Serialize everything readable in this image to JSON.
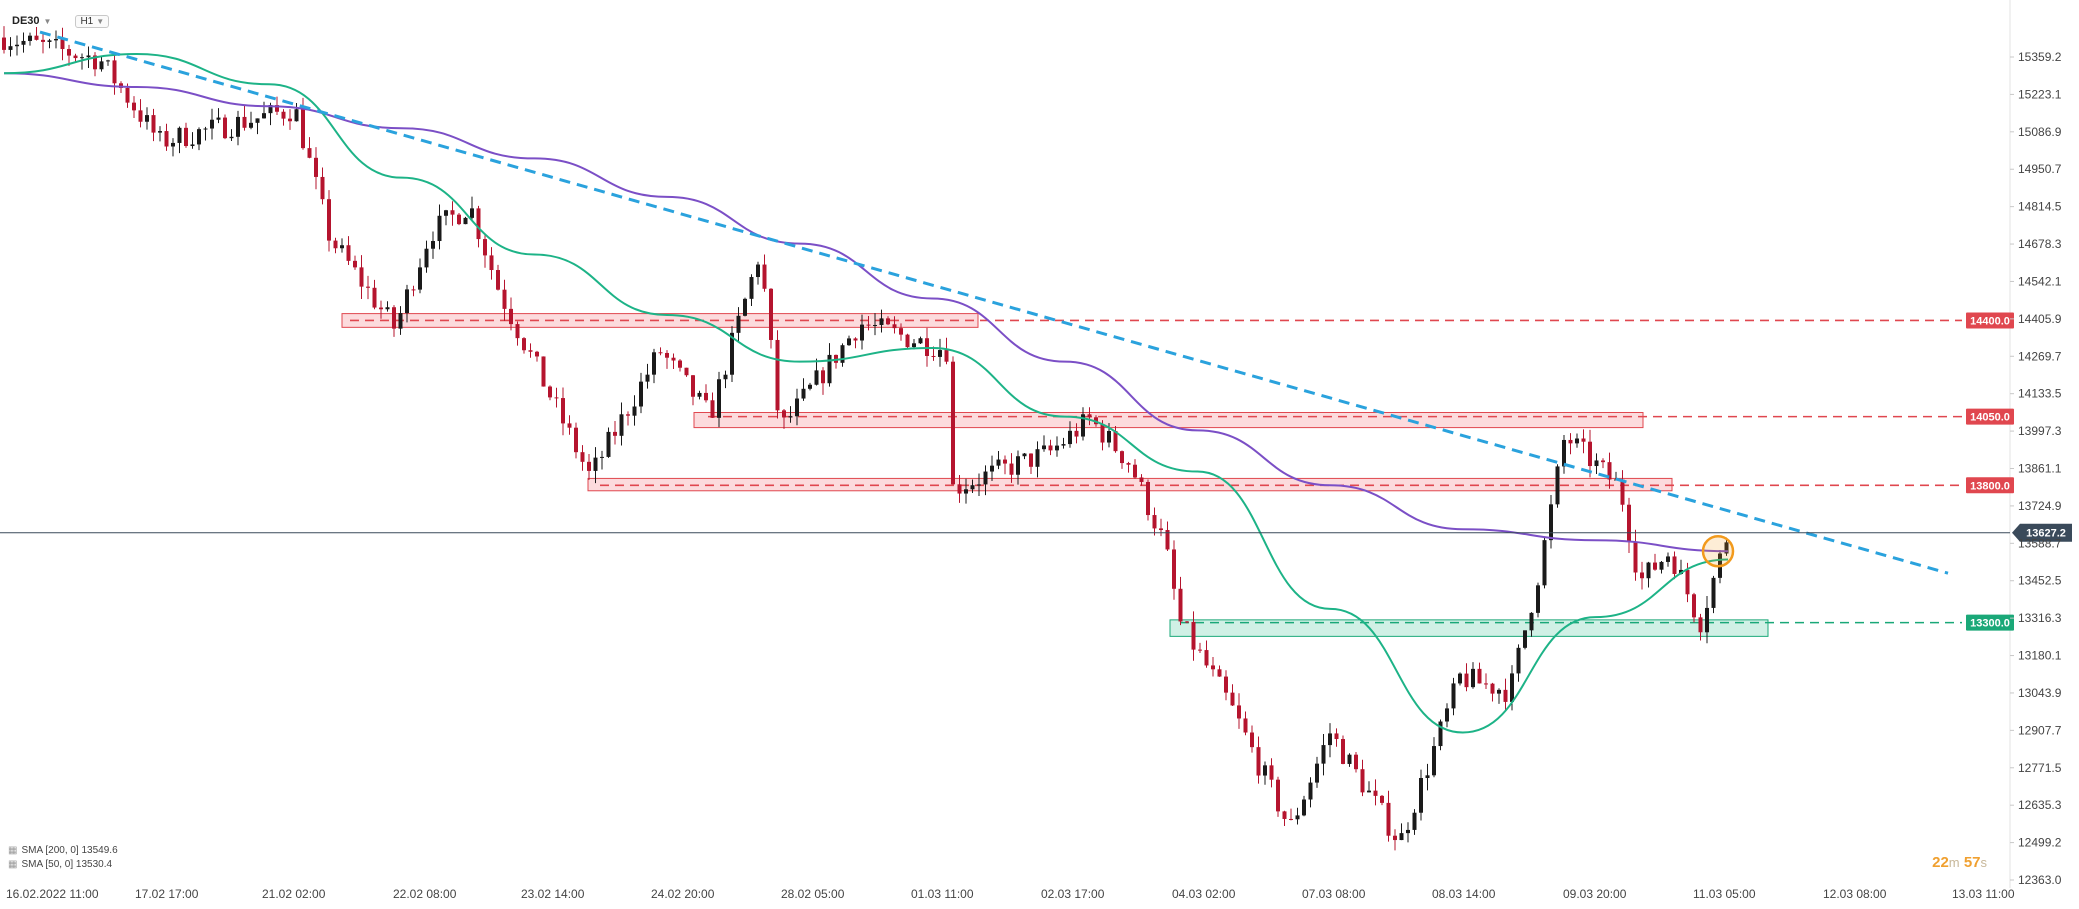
{
  "header": {
    "symbol": "DE30",
    "symbol_suffix": "",
    "timeframe": "H1",
    "dropdown_icon": "chevron-down-icon"
  },
  "legend": [
    {
      "label": "SMA [200, 0] 13549.6",
      "color": "#7b4fc6",
      "icon": "indicator-icon"
    },
    {
      "label": "SMA [50, 0] 13530.4",
      "color": "#1db387",
      "icon": "indicator-icon"
    }
  ],
  "timer": {
    "minutes": "22",
    "m_unit": "m",
    "seconds": "57",
    "s_unit": "s"
  },
  "colors": {
    "bull": "#1a1a1a",
    "bear": "#b5142e",
    "sma200": "#7b4fc6",
    "sma50": "#1db387",
    "trendline": "#2aa2dd",
    "resistance": "#e0474f",
    "support": "#1aa878",
    "current": "#3a4a5a",
    "highlight": "#f29a1c"
  },
  "chart_data": {
    "type": "candlestick",
    "symbol": "DE30",
    "timeframe": "H1",
    "ylim": [
      12363.0,
      15500.0
    ],
    "y_ticks": [
      "15359.2",
      "15223.1",
      "15086.9",
      "14950.7",
      "14814.5",
      "14678.3",
      "14542.1",
      "14405.9",
      "14269.7",
      "14133.5",
      "13997.3",
      "13861.1",
      "13724.9",
      "13588.7",
      "13452.5",
      "13316.3",
      "13180.1",
      "13043.9",
      "12907.7",
      "12771.5",
      "12635.3",
      "12499.2",
      "12363.0"
    ],
    "x_ticks": [
      "16.02.2022  11:00",
      "17.02  17:00",
      "21.02  02:00",
      "22.02  08:00",
      "23.02  14:00",
      "24.02  20:00",
      "28.02  05:00",
      "01.03  11:00",
      "02.03  17:00",
      "04.03  02:00",
      "07.03  08:00",
      "08.03  14:00",
      "09.03  20:00",
      "11.03  05:00",
      "12.03  08:00",
      "13.03  11:00"
    ],
    "current_price": "13627.2",
    "levels": [
      {
        "label": "14400.0",
        "value": 14400,
        "kind": "resistance"
      },
      {
        "label": "14050.0",
        "value": 14050,
        "kind": "resistance"
      },
      {
        "label": "13800.0",
        "value": 13800,
        "kind": "resistance"
      },
      {
        "label": "13300.0",
        "value": 13300,
        "kind": "support"
      }
    ],
    "zones": [
      {
        "from_x": "21.02",
        "to_x": "01.03",
        "low": 14375,
        "high": 14425,
        "kind": "resistance"
      },
      {
        "from_x": "25.02",
        "to_x": "10.03",
        "low": 14010,
        "high": 14065,
        "kind": "resistance"
      },
      {
        "from_x": "23.02",
        "to_x": "10.03",
        "low": 13780,
        "high": 13825,
        "kind": "resistance"
      },
      {
        "from_x": "04.03",
        "to_x": "11.03",
        "low": 13250,
        "high": 13310,
        "kind": "support"
      }
    ],
    "trendline": {
      "start": {
        "x": "16.02",
        "y": 15450
      },
      "end": {
        "x": "12.03",
        "y": 13480
      }
    },
    "series": [
      {
        "name": "SMA [200, 0]",
        "values": [
          15300,
          15250,
          15180,
          15100,
          14990,
          14850,
          14680,
          14480,
          14250,
          14000,
          13800,
          13640,
          13600,
          13560
        ]
      },
      {
        "name": "SMA [50, 0]",
        "values": [
          15300,
          15370,
          15260,
          14920,
          14640,
          14420,
          14250,
          14300,
          14050,
          13850,
          13350,
          12900,
          13320,
          13530
        ]
      }
    ],
    "anchor_points": [
      {
        "x": "16.02",
        "y": 15430
      },
      {
        "x": "17.02",
        "y": 15350
      },
      {
        "x": "18.02",
        "y": 15050
      },
      {
        "x": "21.02",
        "y": 15170
      },
      {
        "x": "21.02b",
        "y": 14700
      },
      {
        "x": "22.02",
        "y": 14370
      },
      {
        "x": "22.02b",
        "y": 14720
      },
      {
        "x": "23.02",
        "y": 14820
      },
      {
        "x": "23.02b",
        "y": 14500
      },
      {
        "x": "24.02",
        "y": 13830
      },
      {
        "x": "24.02b",
        "y": 14290
      },
      {
        "x": "25.02",
        "y": 14050
      },
      {
        "x": "25.02b",
        "y": 14650
      },
      {
        "x": "28.02",
        "y": 14000
      },
      {
        "x": "28.02b",
        "y": 14390
      },
      {
        "x": "01.03",
        "y": 14290
      },
      {
        "x": "01.03b",
        "y": 13780
      },
      {
        "x": "02.03",
        "y": 13920
      },
      {
        "x": "02.03b",
        "y": 14040
      },
      {
        "x": "03.03",
        "y": 13880
      },
      {
        "x": "03.03b",
        "y": 13580
      },
      {
        "x": "04.03",
        "y": 13300
      },
      {
        "x": "04.03b",
        "y": 13000
      },
      {
        "x": "07.03",
        "y": 12550
      },
      {
        "x": "07.03b",
        "y": 12900
      },
      {
        "x": "08.03",
        "y": 12500
      },
      {
        "x": "08.03b",
        "y": 13100
      },
      {
        "x": "09.03",
        "y": 13050
      },
      {
        "x": "09.03b",
        "y": 13500
      },
      {
        "x": "09.03c",
        "y": 13980
      },
      {
        "x": "10.03",
        "y": 13790
      },
      {
        "x": "10.03b",
        "y": 13450
      },
      {
        "x": "10.03c",
        "y": 13560
      },
      {
        "x": "11.03",
        "y": 13300
      },
      {
        "x": "11.03b",
        "y": 13627
      }
    ],
    "highlight_point": {
      "x": "11.03",
      "y": 13560
    }
  }
}
